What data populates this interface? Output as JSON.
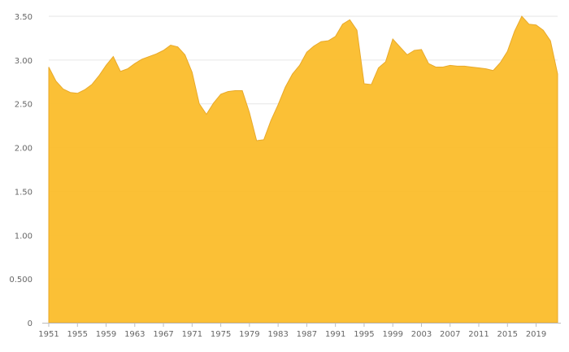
{
  "chart_data": {
    "type": "area",
    "title": "",
    "xlabel": "",
    "ylabel": "",
    "x": [
      1951,
      1952,
      1953,
      1954,
      1955,
      1956,
      1957,
      1958,
      1959,
      1960,
      1961,
      1962,
      1963,
      1964,
      1965,
      1966,
      1967,
      1968,
      1969,
      1970,
      1971,
      1972,
      1973,
      1974,
      1975,
      1976,
      1977,
      1978,
      1979,
      1980,
      1981,
      1982,
      1983,
      1984,
      1985,
      1986,
      1987,
      1988,
      1989,
      1990,
      1991,
      1992,
      1993,
      1994,
      1995,
      1996,
      1997,
      1998,
      1999,
      2000,
      2001,
      2002,
      2003,
      2004,
      2005,
      2006,
      2007,
      2008,
      2009,
      2010,
      2011,
      2012,
      2013,
      2014,
      2015,
      2016,
      2017,
      2018,
      2019,
      2020,
      2021,
      2022
    ],
    "series": [
      {
        "values": [
          2.92,
          2.76,
          2.67,
          2.63,
          2.62,
          2.66,
          2.72,
          2.82,
          2.94,
          3.04,
          2.87,
          2.9,
          2.96,
          3.01,
          3.04,
          3.07,
          3.11,
          3.17,
          3.15,
          3.06,
          2.86,
          2.5,
          2.38,
          2.51,
          2.61,
          2.64,
          2.65,
          2.65,
          2.4,
          2.08,
          2.09,
          2.31,
          2.49,
          2.69,
          2.84,
          2.94,
          3.09,
          3.16,
          3.21,
          3.22,
          3.27,
          3.41,
          3.46,
          3.34,
          2.73,
          2.72,
          2.91,
          2.98,
          3.24,
          3.15,
          3.06,
          3.11,
          3.12,
          2.96,
          2.92,
          2.92,
          2.94,
          2.93,
          2.93,
          2.92,
          2.91,
          2.9,
          2.88,
          2.97,
          3.1,
          3.33,
          3.5,
          3.41,
          3.4,
          3.34,
          3.22,
          2.84
        ],
        "color": "#FBBD2B"
      }
    ],
    "ylim": [
      0,
      3.5
    ],
    "yticks": [
      0,
      0.5,
      1.0,
      1.5,
      2.0,
      2.5,
      3.0,
      3.5
    ],
    "ytick_labels": [
      "0",
      "0.500",
      "1.00",
      "1.50",
      "2.00",
      "2.50",
      "3.00",
      "3.50"
    ],
    "xticks": [
      1951,
      1955,
      1959,
      1963,
      1967,
      1971,
      1975,
      1979,
      1983,
      1987,
      1991,
      1995,
      1999,
      2003,
      2007,
      2011,
      2015,
      2019
    ],
    "xtick_labels": [
      "1951",
      "1955",
      "1959",
      "1963",
      "1967",
      "1971",
      "1975",
      "1979",
      "1983",
      "1987",
      "1991",
      "1995",
      "1999",
      "2003",
      "2007",
      "2011",
      "2015",
      "2019"
    ],
    "grid": true,
    "legend": "none",
    "colors": {
      "area_fill": "#FBBD2B",
      "area_stroke": "#E8A92A",
      "grid": "#e6e6e6",
      "axis": "#bdbdbd",
      "tick_text": "#666666"
    }
  }
}
